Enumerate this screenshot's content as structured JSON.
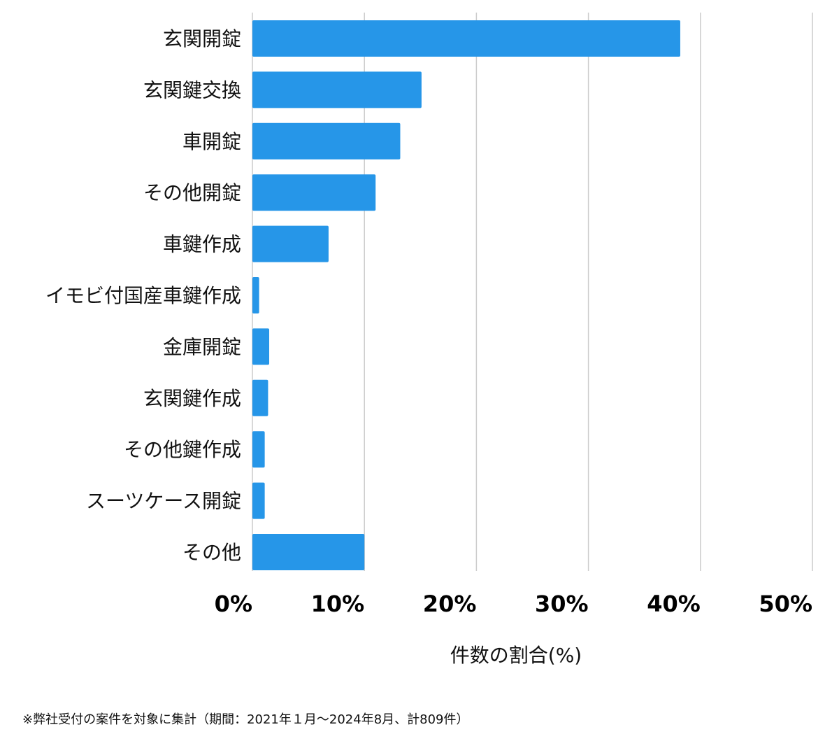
{
  "chart_data": {
    "type": "bar",
    "orientation": "horizontal",
    "categories": [
      "玄関開錠",
      "玄関鍵交換",
      "車開錠",
      "その他開錠",
      "車鍵作成",
      "イモビ付国産車鍵作成",
      "金庫開錠",
      "玄関鍵作成",
      "その他鍵作成",
      "スーツケース開錠",
      "その他"
    ],
    "values": [
      38.2,
      15.1,
      13.2,
      11.0,
      6.8,
      0.6,
      1.5,
      1.4,
      1.1,
      1.1,
      10.0
    ],
    "xlim": [
      0,
      50
    ],
    "x_ticks": [
      0,
      10,
      20,
      30,
      40,
      50
    ],
    "x_tick_labels": [
      "0%",
      "10%",
      "20%",
      "30%",
      "40%",
      "50%"
    ],
    "xlabel": "件数の割合(%)",
    "ylabel": "",
    "title": "",
    "grid": true,
    "bar_color": "#2696e8",
    "grid_color": "#cccccc"
  },
  "footnote": "※弊社受付の案件を対象に集計（期間：2021年１月〜2024年8月、計809件）"
}
